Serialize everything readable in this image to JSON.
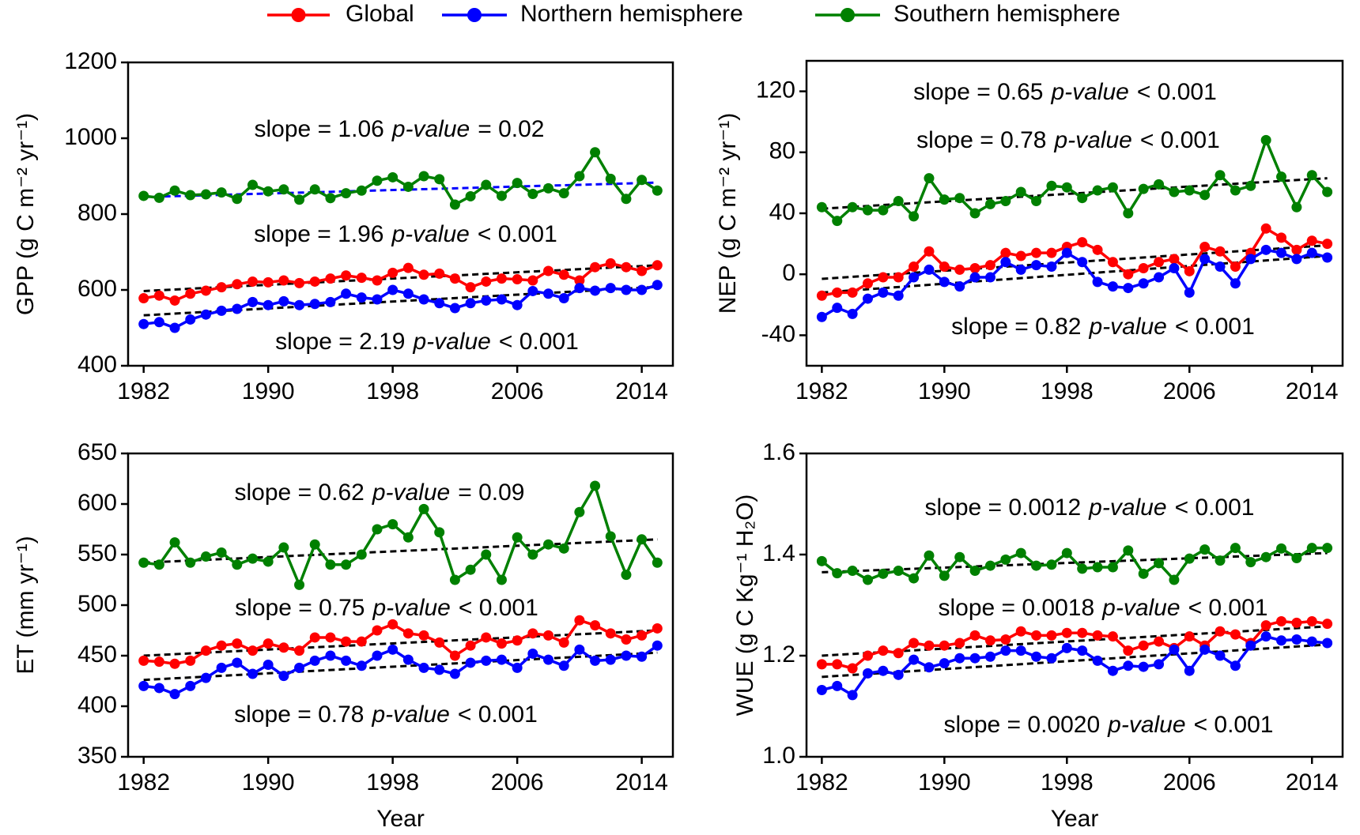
{
  "chart_data": [
    {
      "type": "line",
      "y_label": "GPP (g C m⁻² yr⁻¹)",
      "x": [
        1982,
        1983,
        1984,
        1985,
        1986,
        1987,
        1988,
        1989,
        1990,
        1991,
        1992,
        1993,
        1994,
        1995,
        1996,
        1997,
        1998,
        1999,
        2000,
        2001,
        2002,
        2003,
        2004,
        2005,
        2006,
        2007,
        2008,
        2009,
        2010,
        2011,
        2012,
        2013,
        2014,
        2015
      ],
      "xlim": [
        1981,
        2016
      ],
      "xticks": [
        1982,
        1990,
        1998,
        2006,
        2014
      ],
      "ylim": [
        400,
        1200
      ],
      "yticks": [
        400,
        600,
        800,
        1000,
        1200
      ],
      "series": [
        {
          "name": "Global",
          "color": "#ff0000",
          "trend_color": "#000000",
          "trend": [
            597,
            665
          ],
          "values": [
            578,
            585,
            572,
            590,
            598,
            607,
            615,
            622,
            620,
            625,
            618,
            622,
            630,
            638,
            632,
            625,
            645,
            658,
            640,
            643,
            630,
            607,
            622,
            630,
            628,
            625,
            650,
            640,
            625,
            660,
            670,
            660,
            650,
            665
          ]
        },
        {
          "name": "Northern hemisphere",
          "color": "#0000ff",
          "trend_color": "#000000",
          "trend": [
            533,
            608
          ],
          "values": [
            510,
            515,
            500,
            522,
            535,
            545,
            550,
            568,
            560,
            570,
            560,
            563,
            568,
            590,
            580,
            575,
            600,
            590,
            575,
            565,
            552,
            565,
            572,
            575,
            560,
            597,
            590,
            578,
            605,
            598,
            605,
            600,
            600,
            613
          ]
        },
        {
          "name": "Southern hemisphere",
          "color": "#008000",
          "trend_color": "#0000ff",
          "trend": [
            845,
            883
          ],
          "values": [
            848,
            843,
            862,
            850,
            852,
            857,
            840,
            877,
            860,
            865,
            838,
            865,
            842,
            855,
            862,
            888,
            897,
            872,
            900,
            892,
            825,
            847,
            877,
            848,
            882,
            853,
            868,
            855,
            900,
            963,
            893,
            840,
            890,
            862
          ]
        }
      ],
      "annotations": [
        {
          "slope": "slope = 1.06",
          "p": "p-value",
          "result": "= 0.02"
        },
        {
          "slope": "slope = 1.96",
          "p": "p-value",
          "result": "< 0.001"
        },
        {
          "slope": "slope = 2.19",
          "p": "p-value",
          "result": "< 0.001"
        }
      ]
    },
    {
      "type": "line",
      "y_label": "NEP (g C m⁻² yr⁻¹)",
      "x": [
        1982,
        1983,
        1984,
        1985,
        1986,
        1987,
        1988,
        1989,
        1990,
        1991,
        1992,
        1993,
        1994,
        1995,
        1996,
        1997,
        1998,
        1999,
        2000,
        2001,
        2002,
        2003,
        2004,
        2005,
        2006,
        2007,
        2008,
        2009,
        2010,
        2011,
        2012,
        2013,
        2014,
        2015
      ],
      "xlim": [
        1981,
        2016
      ],
      "xticks": [
        1982,
        1990,
        1998,
        2006,
        2014
      ],
      "ylim": [
        -60,
        140
      ],
      "yticks": [
        -40,
        0,
        40,
        80,
        120
      ],
      "series": [
        {
          "color": "#ff0000",
          "trend_color": "#000000",
          "trend": [
            -3,
            19
          ],
          "values": [
            -14,
            -12,
            -12,
            -6,
            -2,
            -2,
            5,
            15,
            5,
            3,
            4,
            6,
            14,
            12,
            14,
            14,
            18,
            21,
            16,
            8,
            0,
            4,
            8,
            10,
            2,
            18,
            15,
            5,
            14,
            30,
            24,
            16,
            22,
            20
          ]
        },
        {
          "color": "#0000ff",
          "trend_color": "#000000",
          "trend": [
            -12,
            12
          ],
          "values": [
            -28,
            -22,
            -26,
            -16,
            -12,
            -14,
            -2,
            3,
            -5,
            -8,
            -2,
            -2,
            8,
            3,
            6,
            5,
            14,
            8,
            -5,
            -8,
            -9,
            -6,
            -2,
            4,
            -12,
            10,
            5,
            -6,
            10,
            16,
            14,
            10,
            14,
            11
          ]
        },
        {
          "color": "#008000",
          "trend_color": "#000000",
          "trend": [
            43,
            63
          ],
          "values": [
            44,
            35,
            44,
            42,
            42,
            48,
            38,
            63,
            49,
            50,
            40,
            46,
            48,
            54,
            48,
            58,
            57,
            50,
            55,
            57,
            40,
            56,
            59,
            54,
            55,
            52,
            65,
            55,
            58,
            88,
            64,
            44,
            65,
            54
          ]
        }
      ],
      "annotations": [
        {
          "slope": "slope = 0.65",
          "p": "p-value",
          "result": "< 0.001"
        },
        {
          "slope": "slope = 0.78",
          "p": "p-value",
          "result": "< 0.001"
        },
        {
          "slope": "slope = 0.82",
          "p": "p-value",
          "result": "< 0.001"
        }
      ]
    },
    {
      "type": "line",
      "y_label": "ET (mm yr⁻¹)",
      "x_label": "Year",
      "x": [
        1982,
        1983,
        1984,
        1985,
        1986,
        1987,
        1988,
        1989,
        1990,
        1991,
        1992,
        1993,
        1994,
        1995,
        1996,
        1997,
        1998,
        1999,
        2000,
        2001,
        2002,
        2003,
        2004,
        2005,
        2006,
        2007,
        2008,
        2009,
        2010,
        2011,
        2012,
        2013,
        2014,
        2015
      ],
      "xlim": [
        1981,
        2016
      ],
      "xticks": [
        1982,
        1990,
        1998,
        2006,
        2014
      ],
      "ylim": [
        350,
        650
      ],
      "yticks": [
        350,
        400,
        450,
        500,
        550,
        600,
        650
      ],
      "series": [
        {
          "color": "#ff0000",
          "trend_color": "#000000",
          "trend": [
            450,
            475
          ],
          "values": [
            445,
            444,
            442,
            445,
            455,
            460,
            462,
            455,
            462,
            458,
            455,
            468,
            468,
            464,
            464,
            475,
            481,
            472,
            470,
            463,
            450,
            460,
            468,
            462,
            465,
            472,
            470,
            463,
            485,
            480,
            472,
            466,
            470,
            477
          ]
        },
        {
          "color": "#0000ff",
          "trend_color": "#000000",
          "trend": [
            426,
            453
          ],
          "values": [
            420,
            418,
            412,
            420,
            428,
            438,
            443,
            432,
            441,
            430,
            438,
            445,
            450,
            445,
            440,
            450,
            456,
            446,
            438,
            436,
            432,
            443,
            445,
            446,
            438,
            452,
            446,
            440,
            456,
            445,
            446,
            450,
            449,
            460
          ]
        },
        {
          "color": "#008000",
          "trend_color": "#000000",
          "trend": [
            542,
            565
          ],
          "values": [
            542,
            540,
            562,
            542,
            548,
            552,
            540,
            546,
            543,
            557,
            520,
            560,
            540,
            540,
            550,
            575,
            580,
            567,
            595,
            572,
            525,
            535,
            550,
            525,
            567,
            550,
            560,
            556,
            592,
            618,
            568,
            530,
            565,
            542
          ]
        }
      ],
      "annotations": [
        {
          "slope": "slope = 0.62",
          "p": "p-value",
          "result": "= 0.09"
        },
        {
          "slope": "slope = 0.75",
          "p": "p-value",
          "result": "< 0.001"
        },
        {
          "slope": "slope = 0.78",
          "p": "p-value",
          "result": "< 0.001"
        }
      ]
    },
    {
      "type": "line",
      "y_label": "WUE (g C Kg⁻¹ H₂O)",
      "x_label": "Year",
      "x": [
        1982,
        1983,
        1984,
        1985,
        1986,
        1987,
        1988,
        1989,
        1990,
        1991,
        1992,
        1993,
        1994,
        1995,
        1996,
        1997,
        1998,
        1999,
        2000,
        2001,
        2002,
        2003,
        2004,
        2005,
        2006,
        2007,
        2008,
        2009,
        2010,
        2011,
        2012,
        2013,
        2014,
        2015
      ],
      "xlim": [
        1981,
        2016
      ],
      "xticks": [
        1982,
        1990,
        1998,
        2006,
        2014
      ],
      "ylim": [
        1,
        1.6
      ],
      "yticks": [
        {
          "value": 1,
          "label": "1.0"
        },
        1.2,
        1.4,
        1.6
      ],
      "series": [
        {
          "color": "#ff0000",
          "trend_color": "#000000",
          "trend": [
            1.2,
            1.258
          ],
          "values": [
            1.183,
            1.183,
            1.175,
            1.2,
            1.21,
            1.205,
            1.225,
            1.22,
            1.22,
            1.225,
            1.24,
            1.23,
            1.232,
            1.248,
            1.24,
            1.24,
            1.245,
            1.245,
            1.24,
            1.238,
            1.21,
            1.22,
            1.228,
            1.215,
            1.238,
            1.22,
            1.248,
            1.242,
            1.225,
            1.26,
            1.268,
            1.265,
            1.268,
            1.263
          ]
        },
        {
          "color": "#0000ff",
          "trend_color": "#000000",
          "trend": [
            1.158,
            1.222
          ],
          "values": [
            1.132,
            1.14,
            1.122,
            1.165,
            1.17,
            1.162,
            1.192,
            1.177,
            1.185,
            1.195,
            1.195,
            1.198,
            1.21,
            1.21,
            1.198,
            1.195,
            1.215,
            1.21,
            1.19,
            1.17,
            1.18,
            1.178,
            1.183,
            1.212,
            1.17,
            1.212,
            1.2,
            1.18,
            1.22,
            1.238,
            1.23,
            1.232,
            1.228,
            1.225
          ]
        },
        {
          "color": "#008000",
          "trend_color": "#000000",
          "trend": [
            1.365,
            1.403
          ],
          "values": [
            1.387,
            1.363,
            1.368,
            1.35,
            1.362,
            1.368,
            1.353,
            1.398,
            1.358,
            1.395,
            1.368,
            1.378,
            1.39,
            1.403,
            1.378,
            1.38,
            1.403,
            1.372,
            1.375,
            1.375,
            1.408,
            1.362,
            1.383,
            1.35,
            1.392,
            1.41,
            1.388,
            1.413,
            1.385,
            1.395,
            1.412,
            1.393,
            1.413,
            1.413
          ]
        }
      ],
      "annotations": [
        {
          "slope": "slope = 0.0012",
          "p": "p-value",
          "result": "< 0.001"
        },
        {
          "slope": "slope = 0.0018",
          "p": "p-value",
          "result": "< 0.001"
        },
        {
          "slope": "slope = 0.0020",
          "p": "p-value",
          "result": "< 0.001"
        }
      ]
    }
  ]
}
